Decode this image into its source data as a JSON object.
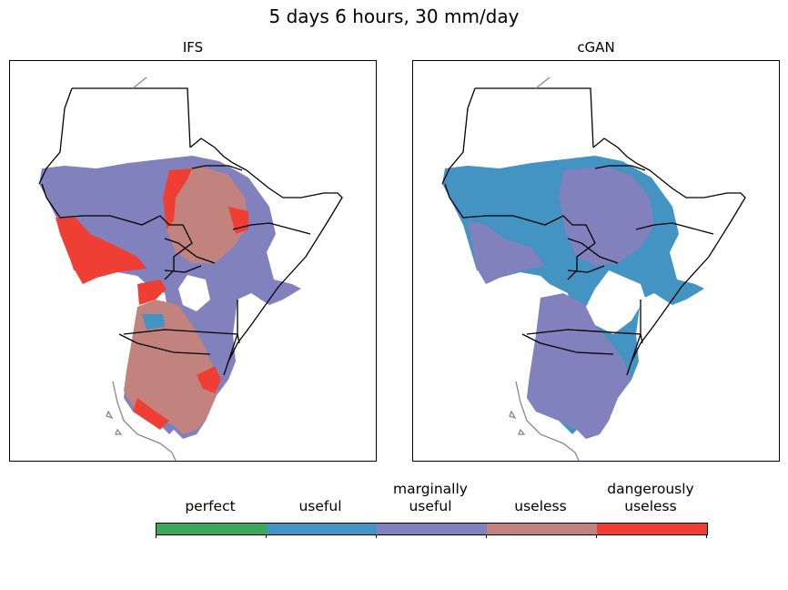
{
  "figure": {
    "title": "5 days 6 hours, 30 mm/day"
  },
  "panels": [
    {
      "title": "IFS"
    },
    {
      "title": "cGAN"
    }
  ],
  "colorbar": {
    "categories": [
      {
        "label_line1": "",
        "label_line2": "perfect",
        "color": "#3ea85a"
      },
      {
        "label_line1": "",
        "label_line2": "useful",
        "color": "#4393c3"
      },
      {
        "label_line1": "marginally",
        "label_line2": "useful",
        "color": "#8181bd"
      },
      {
        "label_line1": "",
        "label_line2": "useless",
        "color": "#c2827e"
      },
      {
        "label_line1": "dangerously",
        "label_line2": "useless",
        "color": "#ef3e34"
      }
    ]
  }
}
